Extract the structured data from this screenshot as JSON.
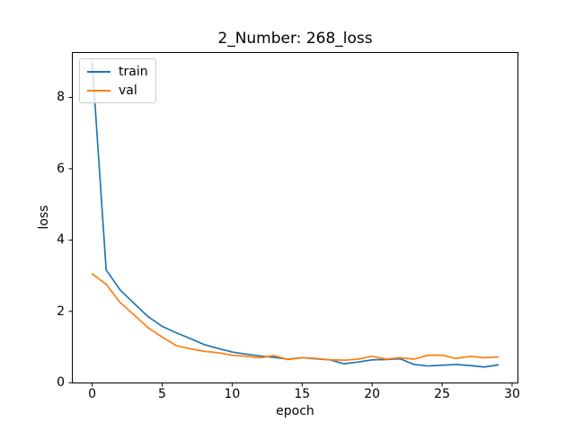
{
  "chart_data": {
    "type": "line",
    "title": "2_Number: 268_loss",
    "xlabel": "epoch",
    "ylabel": "loss",
    "x": [
      0,
      1,
      2,
      3,
      4,
      5,
      6,
      7,
      8,
      9,
      10,
      11,
      12,
      13,
      14,
      15,
      16,
      17,
      18,
      19,
      20,
      21,
      22,
      23,
      24,
      25,
      26,
      27,
      28,
      29
    ],
    "series": [
      {
        "name": "train",
        "color": "#1f77b4",
        "values": [
          9.0,
          3.16,
          2.6,
          2.22,
          1.85,
          1.58,
          1.4,
          1.24,
          1.07,
          0.96,
          0.86,
          0.8,
          0.75,
          0.71,
          0.66,
          0.7,
          0.67,
          0.64,
          0.53,
          0.58,
          0.64,
          0.65,
          0.67,
          0.51,
          0.47,
          0.49,
          0.51,
          0.48,
          0.44,
          0.5
        ]
      },
      {
        "name": "val",
        "color": "#ff7f0e",
        "values": [
          3.05,
          2.76,
          2.25,
          1.9,
          1.54,
          1.28,
          1.04,
          0.95,
          0.88,
          0.84,
          0.77,
          0.74,
          0.7,
          0.76,
          0.65,
          0.7,
          0.68,
          0.64,
          0.63,
          0.66,
          0.74,
          0.66,
          0.7,
          0.66,
          0.77,
          0.77,
          0.68,
          0.74,
          0.7,
          0.72
        ]
      }
    ],
    "xlim": [
      -1.45,
      30.45
    ],
    "ylim": [
      -0.02,
      9.27
    ],
    "xticks": [
      0,
      5,
      10,
      15,
      20,
      25,
      30
    ],
    "yticks": [
      0,
      2,
      4,
      6,
      8
    ],
    "legend_position": "upper left",
    "grid": false
  },
  "colors": {
    "background": "#ffffff",
    "spine": "#000000",
    "text": "#000000"
  }
}
